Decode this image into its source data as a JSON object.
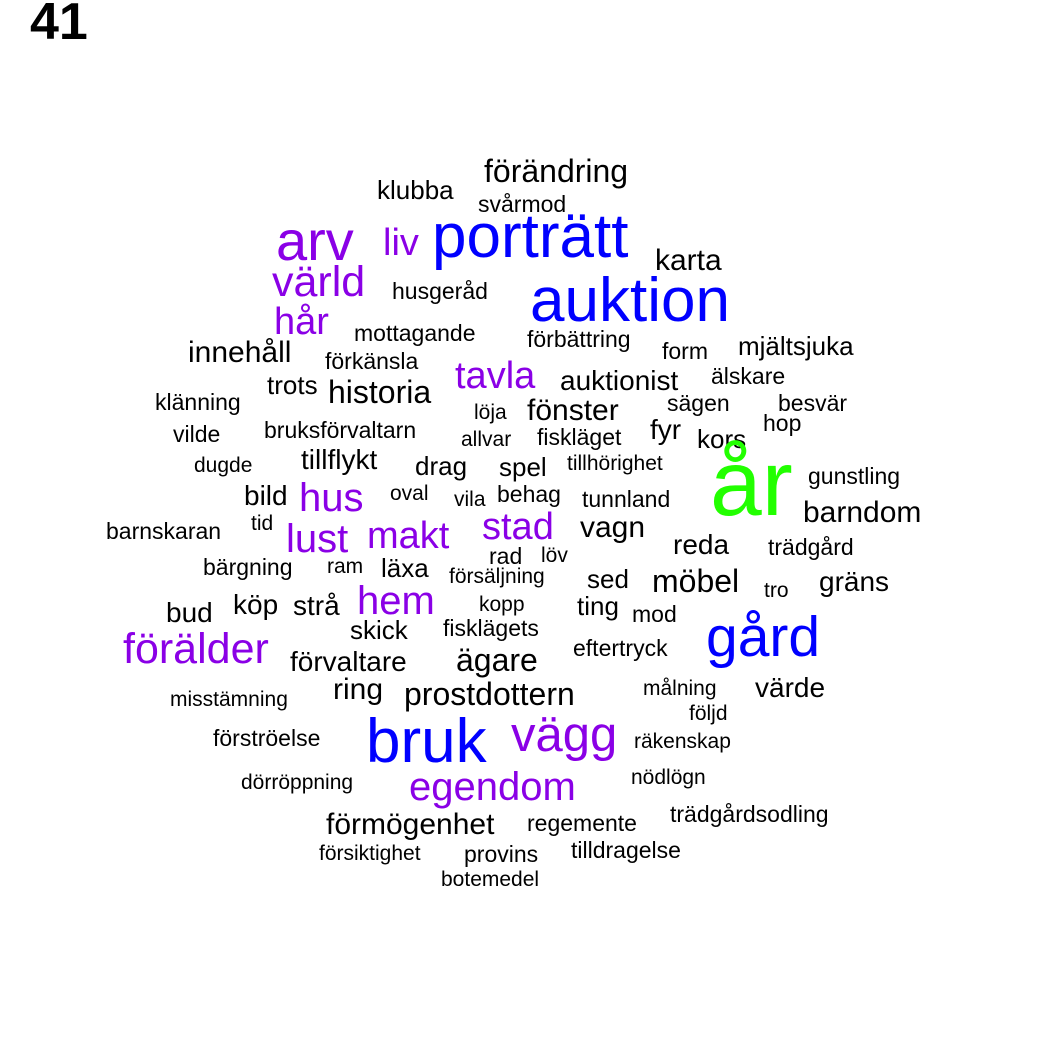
{
  "page_number": "41",
  "colors": {
    "black": "#000000",
    "purple": "#8a00e6",
    "blue": "#0000ff",
    "green": "#22ff00"
  },
  "words": [
    {
      "text": "förändring",
      "color": "black"
    },
    {
      "text": "klubba",
      "color": "black"
    },
    {
      "text": "svårmod",
      "color": "black"
    },
    {
      "text": "arv",
      "color": "purple"
    },
    {
      "text": "liv",
      "color": "purple"
    },
    {
      "text": "porträtt",
      "color": "blue"
    },
    {
      "text": "karta",
      "color": "black"
    },
    {
      "text": "värld",
      "color": "purple"
    },
    {
      "text": "husgeråd",
      "color": "black"
    },
    {
      "text": "auktion",
      "color": "blue"
    },
    {
      "text": "hår",
      "color": "purple"
    },
    {
      "text": "mottagande",
      "color": "black"
    },
    {
      "text": "förbättring",
      "color": "black"
    },
    {
      "text": "form",
      "color": "black"
    },
    {
      "text": "mjältsjuka",
      "color": "black"
    },
    {
      "text": "innehåll",
      "color": "black"
    },
    {
      "text": "förkänsla",
      "color": "black"
    },
    {
      "text": "tavla",
      "color": "purple"
    },
    {
      "text": "auktionist",
      "color": "black"
    },
    {
      "text": "älskare",
      "color": "black"
    },
    {
      "text": "trots",
      "color": "black"
    },
    {
      "text": "historia",
      "color": "black"
    },
    {
      "text": "klänning",
      "color": "black"
    },
    {
      "text": "löja",
      "color": "black"
    },
    {
      "text": "fönster",
      "color": "black"
    },
    {
      "text": "sägen",
      "color": "black"
    },
    {
      "text": "besvär",
      "color": "black"
    },
    {
      "text": "vilde",
      "color": "black"
    },
    {
      "text": "bruksförvaltarn",
      "color": "black"
    },
    {
      "text": "allvar",
      "color": "black"
    },
    {
      "text": "fiskläget",
      "color": "black"
    },
    {
      "text": "fyr",
      "color": "black"
    },
    {
      "text": "kors",
      "color": "black"
    },
    {
      "text": "hop",
      "color": "black"
    },
    {
      "text": "dugde",
      "color": "black"
    },
    {
      "text": "tillflykt",
      "color": "black"
    },
    {
      "text": "drag",
      "color": "black"
    },
    {
      "text": "spel",
      "color": "black"
    },
    {
      "text": "tillhörighet",
      "color": "black"
    },
    {
      "text": "år",
      "color": "green"
    },
    {
      "text": "gunstling",
      "color": "black"
    },
    {
      "text": "bild",
      "color": "black"
    },
    {
      "text": "hus",
      "color": "purple"
    },
    {
      "text": "oval",
      "color": "black"
    },
    {
      "text": "vila",
      "color": "black"
    },
    {
      "text": "behag",
      "color": "black"
    },
    {
      "text": "tunnland",
      "color": "black"
    },
    {
      "text": "barndom",
      "color": "black"
    },
    {
      "text": "barnskaran",
      "color": "black"
    },
    {
      "text": "tid",
      "color": "black"
    },
    {
      "text": "lust",
      "color": "purple"
    },
    {
      "text": "makt",
      "color": "purple"
    },
    {
      "text": "stad",
      "color": "purple"
    },
    {
      "text": "vagn",
      "color": "black"
    },
    {
      "text": "reda",
      "color": "black"
    },
    {
      "text": "trädgård",
      "color": "black"
    },
    {
      "text": "rad",
      "color": "black"
    },
    {
      "text": "löv",
      "color": "black"
    },
    {
      "text": "bärgning",
      "color": "black"
    },
    {
      "text": "ram",
      "color": "black"
    },
    {
      "text": "läxa",
      "color": "black"
    },
    {
      "text": "försäljning",
      "color": "black"
    },
    {
      "text": "sed",
      "color": "black"
    },
    {
      "text": "möbel",
      "color": "black"
    },
    {
      "text": "tro",
      "color": "black"
    },
    {
      "text": "gräns",
      "color": "black"
    },
    {
      "text": "bud",
      "color": "black"
    },
    {
      "text": "köp",
      "color": "black"
    },
    {
      "text": "strå",
      "color": "black"
    },
    {
      "text": "hem",
      "color": "purple"
    },
    {
      "text": "kopp",
      "color": "black"
    },
    {
      "text": "ting",
      "color": "black"
    },
    {
      "text": "mod",
      "color": "black"
    },
    {
      "text": "skick",
      "color": "black"
    },
    {
      "text": "fisklägets",
      "color": "black"
    },
    {
      "text": "gård",
      "color": "blue"
    },
    {
      "text": "förälder",
      "color": "purple"
    },
    {
      "text": "eftertryck",
      "color": "black"
    },
    {
      "text": "förvaltare",
      "color": "black"
    },
    {
      "text": "ägare",
      "color": "black"
    },
    {
      "text": "ring",
      "color": "black"
    },
    {
      "text": "målning",
      "color": "black"
    },
    {
      "text": "värde",
      "color": "black"
    },
    {
      "text": "misstämning",
      "color": "black"
    },
    {
      "text": "prostdottern",
      "color": "black"
    },
    {
      "text": "följd",
      "color": "black"
    },
    {
      "text": "bruk",
      "color": "blue"
    },
    {
      "text": "vägg",
      "color": "purple"
    },
    {
      "text": "förströelse",
      "color": "black"
    },
    {
      "text": "räkenskap",
      "color": "black"
    },
    {
      "text": "nödlögn",
      "color": "black"
    },
    {
      "text": "dörröppning",
      "color": "black"
    },
    {
      "text": "egendom",
      "color": "purple"
    },
    {
      "text": "trädgårdsodling",
      "color": "black"
    },
    {
      "text": "förmögenhet",
      "color": "black"
    },
    {
      "text": "regemente",
      "color": "black"
    },
    {
      "text": "tilldragelse",
      "color": "black"
    },
    {
      "text": "försiktighet",
      "color": "black"
    },
    {
      "text": "provins",
      "color": "black"
    },
    {
      "text": "botemedel",
      "color": "black"
    }
  ]
}
